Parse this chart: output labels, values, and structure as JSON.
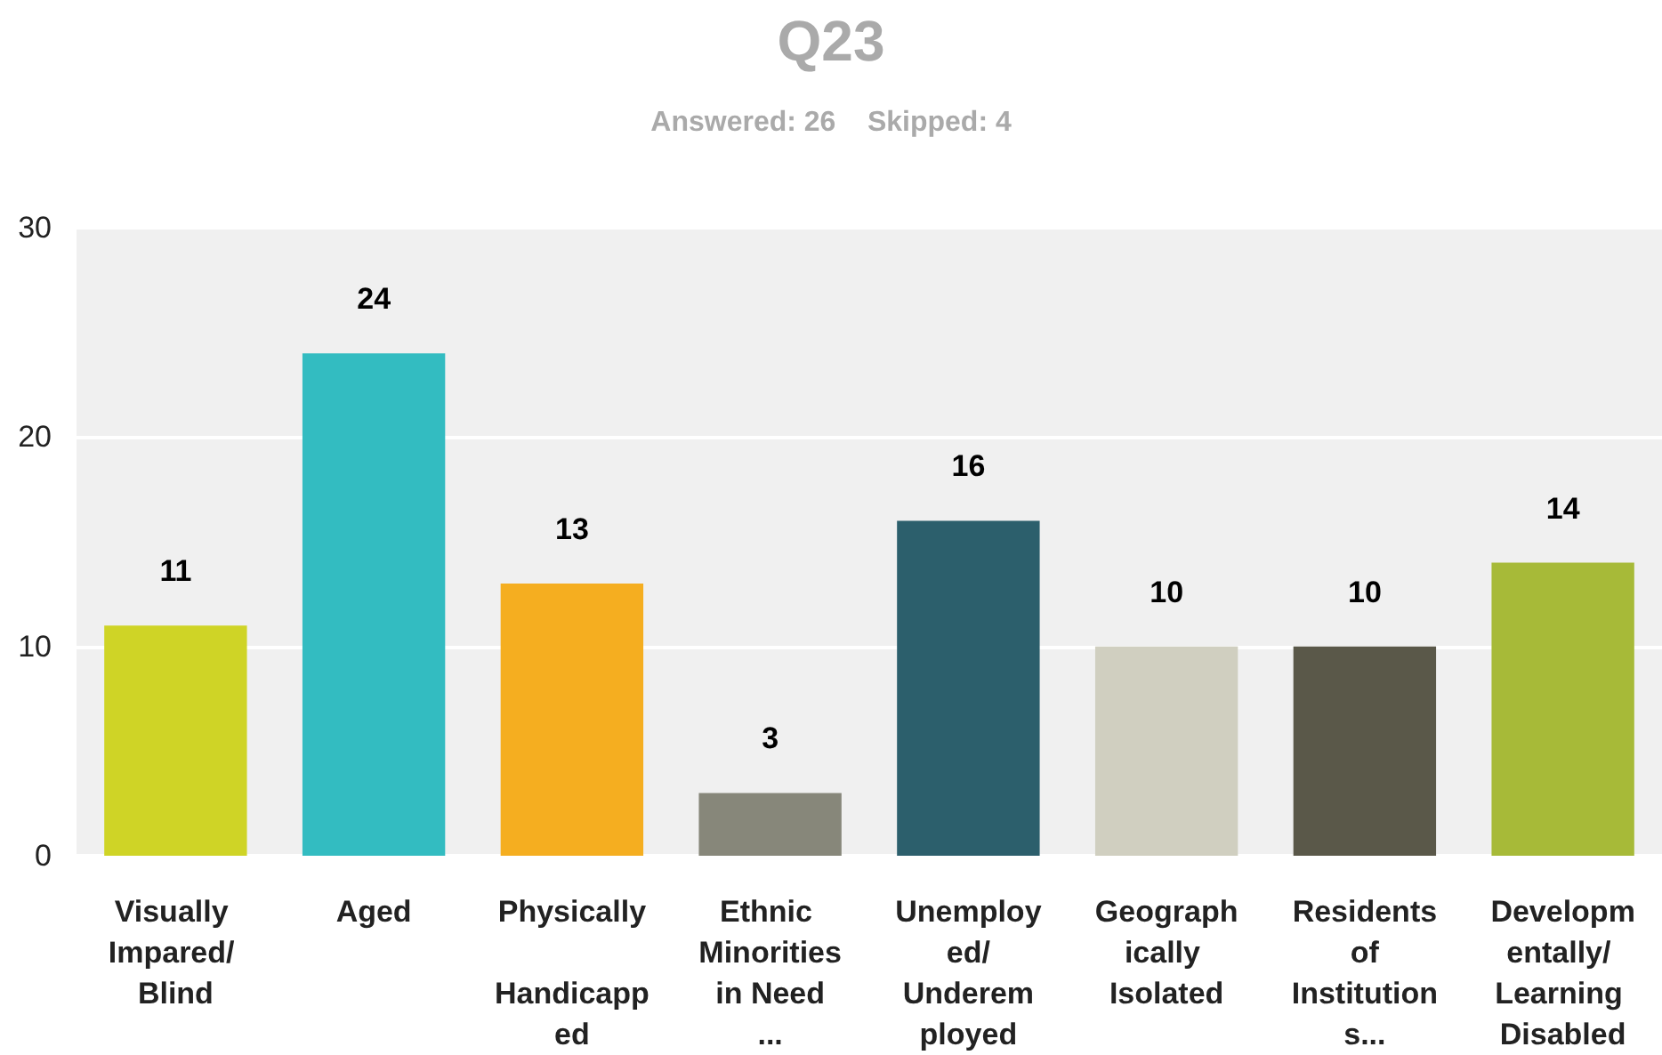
{
  "chart_data": {
    "type": "bar",
    "title": "Q23",
    "subtitle": "Answered: 26    Skipped: 4",
    "categories": [
      "Visually Impared/ Blind",
      "Aged",
      "Physically Handicapped",
      "Ethnic Minorities in Need ...",
      "Unemployed/Underemployed",
      "Geographically Isolated",
      "Residents of Institutions...",
      "Developmentally/ Learning Disabled"
    ],
    "values": [
      11,
      24,
      13,
      3,
      16,
      10,
      10,
      14
    ],
    "colors": [
      "#cfd426",
      "#33bcc1",
      "#f5ae20",
      "#87877a",
      "#2c5f6c",
      "#d0cfc0",
      "#5a5849",
      "#a7ba38"
    ],
    "ylim": [
      0,
      30
    ],
    "yticks": [
      0,
      10,
      20,
      30
    ],
    "grid": "y",
    "data_labels": true
  }
}
